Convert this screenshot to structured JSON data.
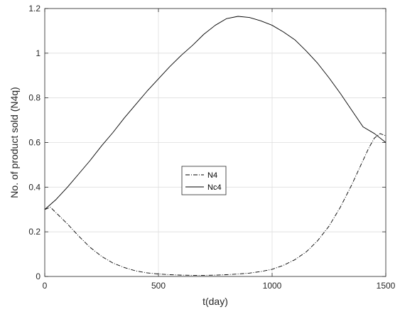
{
  "chart_data": {
    "type": "line",
    "xlabel": "t(day)",
    "ylabel": "No. of product sold (N4q)",
    "xlim": [
      0,
      1500
    ],
    "ylim": [
      0,
      1.2
    ],
    "xticks": [
      0,
      500,
      1000,
      1500
    ],
    "yticks": [
      0,
      0.2,
      0.4,
      0.6,
      0.8,
      1,
      1.2
    ],
    "xtick_labels": [
      "0",
      "500",
      "1000",
      "1500"
    ],
    "ytick_labels": [
      "0",
      "0.2",
      "0.4",
      "0.6",
      "0.8",
      "1",
      "1.2"
    ],
    "grid": true,
    "legend_position": "center",
    "series": [
      {
        "name": "N4",
        "style": "dash-dot",
        "color": "#000000",
        "x": [
          0,
          25,
          50,
          100,
          150,
          200,
          250,
          300,
          350,
          400,
          450,
          500,
          550,
          600,
          650,
          700,
          750,
          800,
          850,
          900,
          950,
          1000,
          1050,
          1100,
          1150,
          1200,
          1250,
          1300,
          1350,
          1400,
          1425,
          1450,
          1475,
          1500
        ],
        "y": [
          0.3,
          0.31,
          0.285,
          0.235,
          0.18,
          0.13,
          0.09,
          0.06,
          0.04,
          0.025,
          0.016,
          0.011,
          0.008,
          0.006,
          0.005,
          0.005,
          0.006,
          0.008,
          0.011,
          0.015,
          0.022,
          0.032,
          0.05,
          0.075,
          0.11,
          0.16,
          0.225,
          0.31,
          0.41,
          0.52,
          0.575,
          0.62,
          0.64,
          0.63
        ]
      },
      {
        "name": "Nc4",
        "style": "solid",
        "color": "#000000",
        "x": [
          0,
          50,
          100,
          150,
          200,
          250,
          300,
          350,
          400,
          450,
          500,
          550,
          600,
          650,
          700,
          750,
          800,
          850,
          900,
          950,
          1000,
          1050,
          1100,
          1150,
          1200,
          1250,
          1300,
          1350,
          1400,
          1450,
          1500
        ],
        "y": [
          0.3,
          0.345,
          0.4,
          0.46,
          0.52,
          0.585,
          0.645,
          0.71,
          0.77,
          0.83,
          0.885,
          0.94,
          0.99,
          1.035,
          1.085,
          1.125,
          1.155,
          1.165,
          1.16,
          1.145,
          1.125,
          1.095,
          1.06,
          1.01,
          0.955,
          0.89,
          0.82,
          0.745,
          0.67,
          0.64,
          0.6
        ]
      }
    ]
  }
}
